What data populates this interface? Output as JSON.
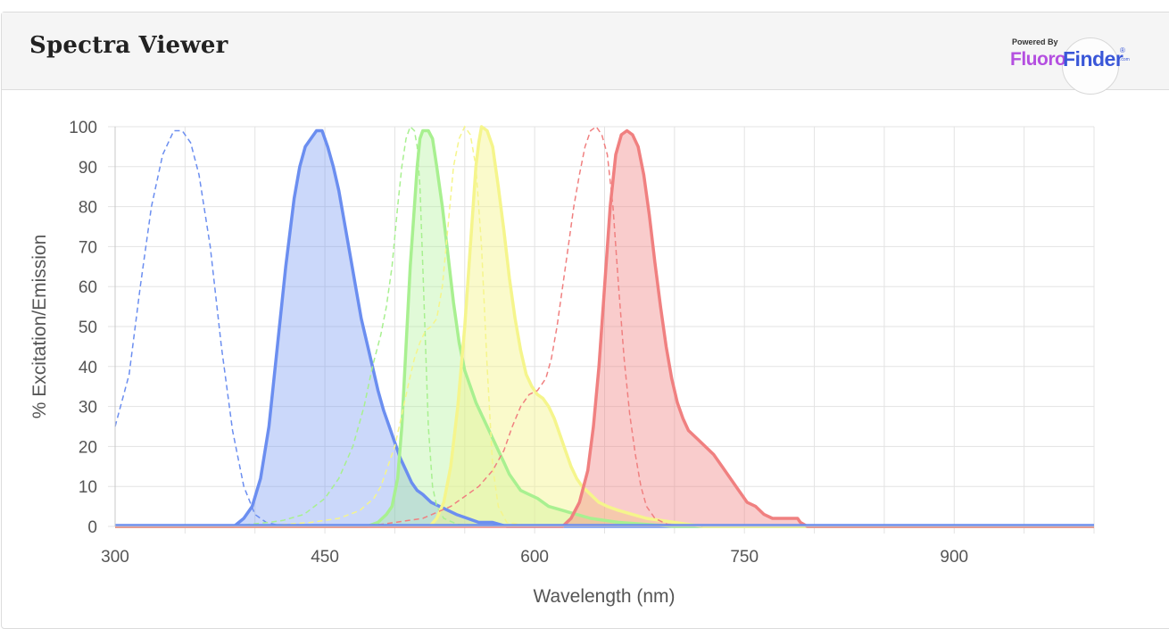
{
  "header": {
    "title": "Spectra Viewer",
    "brand": {
      "powered": "Powered By",
      "fluoro": "Fluoro",
      "finder": "Finder",
      "reg": "®",
      "com": ".com"
    }
  },
  "chart_data": {
    "type": "area",
    "xlabel": "Wavelength (nm)",
    "ylabel": "% Excitation/Emission",
    "xlim": [
      300,
      1000
    ],
    "ylim": [
      0,
      100
    ],
    "x_ticks": [
      300,
      450,
      600,
      750,
      900
    ],
    "y_ticks": [
      0,
      10,
      20,
      30,
      40,
      50,
      60,
      70,
      80,
      90,
      100
    ],
    "grid": true,
    "series": [
      {
        "kind": "excitation",
        "color": "#6b8ef0",
        "points": [
          [
            300,
            25
          ],
          [
            310,
            38
          ],
          [
            318,
            60
          ],
          [
            326,
            80
          ],
          [
            334,
            93
          ],
          [
            342,
            99
          ],
          [
            348,
            99
          ],
          [
            354,
            96
          ],
          [
            360,
            88
          ],
          [
            368,
            70
          ],
          [
            376,
            45
          ],
          [
            384,
            24
          ],
          [
            392,
            10
          ],
          [
            400,
            3
          ],
          [
            408,
            1
          ],
          [
            420,
            0
          ],
          [
            1000,
            0
          ]
        ]
      },
      {
        "kind": "emission",
        "color": "#6b8ef0",
        "fill": "rgba(107,142,240,0.35)",
        "points": [
          [
            300,
            0
          ],
          [
            385,
            0
          ],
          [
            392,
            2
          ],
          [
            398,
            5
          ],
          [
            404,
            12
          ],
          [
            410,
            25
          ],
          [
            416,
            45
          ],
          [
            422,
            65
          ],
          [
            428,
            82
          ],
          [
            432,
            90
          ],
          [
            436,
            95
          ],
          [
            440,
            97
          ],
          [
            444,
            99
          ],
          [
            448,
            99
          ],
          [
            452,
            95
          ],
          [
            456,
            90
          ],
          [
            460,
            84
          ],
          [
            464,
            76
          ],
          [
            468,
            68
          ],
          [
            472,
            60
          ],
          [
            476,
            52
          ],
          [
            480,
            46
          ],
          [
            484,
            40
          ],
          [
            488,
            34
          ],
          [
            492,
            29
          ],
          [
            496,
            25
          ],
          [
            500,
            21
          ],
          [
            504,
            17
          ],
          [
            508,
            14
          ],
          [
            512,
            11
          ],
          [
            516,
            9
          ],
          [
            520,
            8
          ],
          [
            526,
            6
          ],
          [
            532,
            5
          ],
          [
            538,
            4
          ],
          [
            544,
            3
          ],
          [
            552,
            2
          ],
          [
            560,
            1
          ],
          [
            570,
            1
          ],
          [
            580,
            0
          ],
          [
            1000,
            0
          ]
        ]
      },
      {
        "kind": "excitation",
        "color": "#a8f090",
        "points": [
          [
            380,
            0
          ],
          [
            410,
            1
          ],
          [
            420,
            1.5
          ],
          [
            435,
            3
          ],
          [
            450,
            7
          ],
          [
            460,
            12
          ],
          [
            470,
            20
          ],
          [
            478,
            30
          ],
          [
            484,
            40
          ],
          [
            490,
            48
          ],
          [
            494,
            55
          ],
          [
            498,
            65
          ],
          [
            502,
            80
          ],
          [
            505,
            90
          ],
          [
            508,
            97
          ],
          [
            511,
            100
          ],
          [
            514,
            99
          ],
          [
            516,
            95
          ],
          [
            518,
            85
          ],
          [
            520,
            65
          ],
          [
            522,
            45
          ],
          [
            524,
            25
          ],
          [
            527,
            10
          ],
          [
            530,
            5
          ],
          [
            535,
            2
          ],
          [
            545,
            0.5
          ],
          [
            600,
            0
          ]
        ]
      },
      {
        "kind": "emission",
        "color": "#a8f090",
        "fill": "rgba(168,240,144,0.35)",
        "points": [
          [
            300,
            0
          ],
          [
            480,
            0
          ],
          [
            488,
            1
          ],
          [
            494,
            3
          ],
          [
            498,
            5
          ],
          [
            502,
            12
          ],
          [
            505,
            25
          ],
          [
            508,
            45
          ],
          [
            511,
            65
          ],
          [
            514,
            80
          ],
          [
            516,
            90
          ],
          [
            518,
            97
          ],
          [
            520,
            99
          ],
          [
            524,
            99
          ],
          [
            527,
            97
          ],
          [
            530,
            90
          ],
          [
            534,
            80
          ],
          [
            538,
            68
          ],
          [
            542,
            56
          ],
          [
            546,
            46
          ],
          [
            550,
            39
          ],
          [
            554,
            35
          ],
          [
            558,
            31
          ],
          [
            562,
            28
          ],
          [
            566,
            25
          ],
          [
            570,
            22
          ],
          [
            574,
            19
          ],
          [
            578,
            16
          ],
          [
            582,
            13
          ],
          [
            586,
            11
          ],
          [
            590,
            9
          ],
          [
            596,
            8
          ],
          [
            602,
            7
          ],
          [
            610,
            5
          ],
          [
            620,
            4
          ],
          [
            630,
            3
          ],
          [
            640,
            2
          ],
          [
            660,
            1
          ],
          [
            680,
            0.5
          ],
          [
            700,
            0
          ],
          [
            1000,
            0
          ]
        ]
      },
      {
        "kind": "excitation",
        "color": "#f5f58c",
        "points": [
          [
            400,
            0
          ],
          [
            440,
            1
          ],
          [
            460,
            2
          ],
          [
            475,
            4
          ],
          [
            485,
            7
          ],
          [
            490,
            10
          ],
          [
            495,
            15
          ],
          [
            500,
            20
          ],
          [
            505,
            28
          ],
          [
            510,
            36
          ],
          [
            514,
            42
          ],
          [
            518,
            46
          ],
          [
            522,
            49
          ],
          [
            526,
            50
          ],
          [
            530,
            52
          ],
          [
            534,
            60
          ],
          [
            538,
            75
          ],
          [
            542,
            90
          ],
          [
            546,
            97
          ],
          [
            550,
            100
          ],
          [
            554,
            98
          ],
          [
            558,
            90
          ],
          [
            562,
            70
          ],
          [
            566,
            40
          ],
          [
            570,
            15
          ],
          [
            574,
            5
          ],
          [
            580,
            1
          ],
          [
            600,
            0
          ]
        ]
      },
      {
        "kind": "emission",
        "color": "#f5f58c",
        "fill": "rgba(245,245,140,0.45)",
        "points": [
          [
            300,
            0
          ],
          [
            525,
            0
          ],
          [
            530,
            2
          ],
          [
            535,
            6
          ],
          [
            540,
            15
          ],
          [
            545,
            30
          ],
          [
            550,
            50
          ],
          [
            553,
            65
          ],
          [
            556,
            80
          ],
          [
            558,
            90
          ],
          [
            560,
            96
          ],
          [
            562,
            100
          ],
          [
            566,
            99
          ],
          [
            570,
            95
          ],
          [
            574,
            85
          ],
          [
            578,
            74
          ],
          [
            582,
            62
          ],
          [
            586,
            52
          ],
          [
            590,
            44
          ],
          [
            594,
            38
          ],
          [
            598,
            35
          ],
          [
            602,
            33
          ],
          [
            606,
            32
          ],
          [
            610,
            30
          ],
          [
            614,
            27
          ],
          [
            618,
            23
          ],
          [
            622,
            19
          ],
          [
            626,
            15
          ],
          [
            630,
            12
          ],
          [
            634,
            10
          ],
          [
            640,
            8
          ],
          [
            646,
            6
          ],
          [
            652,
            5
          ],
          [
            660,
            4
          ],
          [
            670,
            3
          ],
          [
            680,
            2
          ],
          [
            700,
            1
          ],
          [
            720,
            0
          ],
          [
            1000,
            0
          ]
        ]
      },
      {
        "kind": "excitation",
        "color": "#f08080",
        "points": [
          [
            450,
            0
          ],
          [
            490,
            0.5
          ],
          [
            520,
            2
          ],
          [
            540,
            5
          ],
          [
            560,
            10
          ],
          [
            570,
            14
          ],
          [
            578,
            19
          ],
          [
            584,
            25
          ],
          [
            590,
            30
          ],
          [
            596,
            33
          ],
          [
            602,
            34
          ],
          [
            608,
            37
          ],
          [
            612,
            42
          ],
          [
            616,
            50
          ],
          [
            620,
            60
          ],
          [
            624,
            70
          ],
          [
            628,
            80
          ],
          [
            632,
            88
          ],
          [
            636,
            95
          ],
          [
            640,
            99
          ],
          [
            644,
            100
          ],
          [
            648,
            98
          ],
          [
            652,
            93
          ],
          [
            656,
            80
          ],
          [
            660,
            60
          ],
          [
            664,
            42
          ],
          [
            668,
            28
          ],
          [
            672,
            18
          ],
          [
            676,
            10
          ],
          [
            680,
            5
          ],
          [
            686,
            2
          ],
          [
            695,
            0.5
          ],
          [
            720,
            0
          ]
        ]
      },
      {
        "kind": "emission",
        "color": "#f08080",
        "fill": "rgba(240,128,128,0.4)",
        "points": [
          [
            300,
            0
          ],
          [
            620,
            0
          ],
          [
            626,
            2
          ],
          [
            632,
            6
          ],
          [
            638,
            14
          ],
          [
            642,
            25
          ],
          [
            646,
            40
          ],
          [
            650,
            60
          ],
          [
            654,
            80
          ],
          [
            658,
            93
          ],
          [
            662,
            98
          ],
          [
            666,
            99
          ],
          [
            670,
            98
          ],
          [
            674,
            95
          ],
          [
            678,
            88
          ],
          [
            682,
            78
          ],
          [
            686,
            66
          ],
          [
            690,
            55
          ],
          [
            694,
            45
          ],
          [
            698,
            37
          ],
          [
            702,
            31
          ],
          [
            706,
            27
          ],
          [
            710,
            24
          ],
          [
            716,
            22
          ],
          [
            722,
            20
          ],
          [
            728,
            18
          ],
          [
            734,
            15
          ],
          [
            740,
            12
          ],
          [
            746,
            9
          ],
          [
            752,
            6
          ],
          [
            758,
            5
          ],
          [
            764,
            3
          ],
          [
            770,
            2
          ],
          [
            780,
            2
          ],
          [
            788,
            2
          ],
          [
            790,
            1
          ],
          [
            795,
            0
          ],
          [
            1000,
            0
          ]
        ]
      },
      {
        "kind": "baseline",
        "color": "#6b8ef0",
        "points": [
          [
            300,
            0.3
          ],
          [
            1000,
            0.3
          ]
        ]
      }
    ]
  }
}
